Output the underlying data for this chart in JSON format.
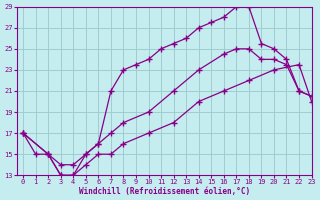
{
  "title": "",
  "xlabel": "Windchill (Refroidissement éolien,°C)",
  "ylabel": "",
  "bg_color": "#c5ecee",
  "line_color": "#880088",
  "grid_color": "#9ecdd0",
  "xlim": [
    -0.5,
    23
  ],
  "ylim": [
    13,
    29
  ],
  "yticks": [
    13,
    15,
    17,
    19,
    21,
    23,
    25,
    27,
    29
  ],
  "xticks": [
    0,
    1,
    2,
    3,
    4,
    5,
    6,
    7,
    8,
    9,
    10,
    11,
    12,
    13,
    14,
    15,
    16,
    17,
    18,
    19,
    20,
    21,
    22,
    23
  ],
  "line1_x": [
    0,
    1,
    2,
    3,
    4,
    5,
    6,
    7,
    8,
    9,
    10,
    11,
    12,
    13,
    14,
    15,
    16,
    17,
    18,
    19,
    20,
    21,
    22,
    23
  ],
  "line1_y": [
    17,
    15,
    15,
    13,
    13,
    15,
    16,
    21,
    23,
    23.5,
    24,
    25,
    25.5,
    26,
    27,
    27.5,
    28,
    29,
    29,
    25.5,
    25,
    24,
    21,
    20.5
  ],
  "line2_x": [
    0,
    2,
    3,
    4,
    5,
    6,
    7,
    8,
    10,
    12,
    14,
    16,
    17,
    18,
    19,
    20,
    21,
    22,
    23
  ],
  "line2_y": [
    17,
    15,
    14,
    14,
    15,
    16,
    17,
    18,
    19,
    21,
    23,
    24.5,
    25,
    25,
    24,
    24,
    23.5,
    21,
    20.5
  ],
  "line3_x": [
    0,
    2,
    3,
    4,
    5,
    6,
    7,
    8,
    10,
    12,
    14,
    16,
    18,
    20,
    22,
    23
  ],
  "line3_y": [
    17,
    15,
    13,
    13,
    14,
    15,
    15,
    16,
    17,
    18,
    20,
    21,
    22,
    23,
    23.5,
    20
  ]
}
